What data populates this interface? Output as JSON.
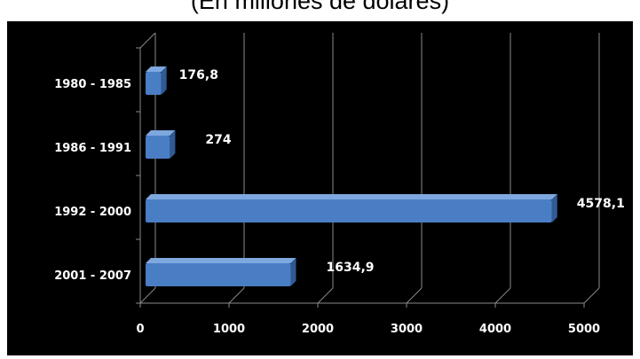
{
  "chart_data": {
    "type": "bar",
    "orientation": "horizontal",
    "style": "3d",
    "title": "(En millones de dólares)",
    "categories": [
      "1980 - 1985",
      "1986 - 1991",
      "1992 - 2000",
      "2001 - 2007"
    ],
    "values": [
      176.8,
      274,
      4578.1,
      1634.9
    ],
    "value_labels": [
      "176,8",
      "274",
      "4578,1",
      "1634,9"
    ],
    "x_ticks": [
      "0",
      "1000",
      "2000",
      "3000",
      "4000",
      "5000"
    ],
    "xlim": [
      0,
      5000
    ],
    "grid": true,
    "legend": "none",
    "colors": {
      "background": "#000000",
      "bar_front": "#4a7ec4",
      "bar_top": "#7ea8de",
      "bar_side": "#2f5a94",
      "grid": "#8a8a8a",
      "text": "#ffffff"
    }
  }
}
